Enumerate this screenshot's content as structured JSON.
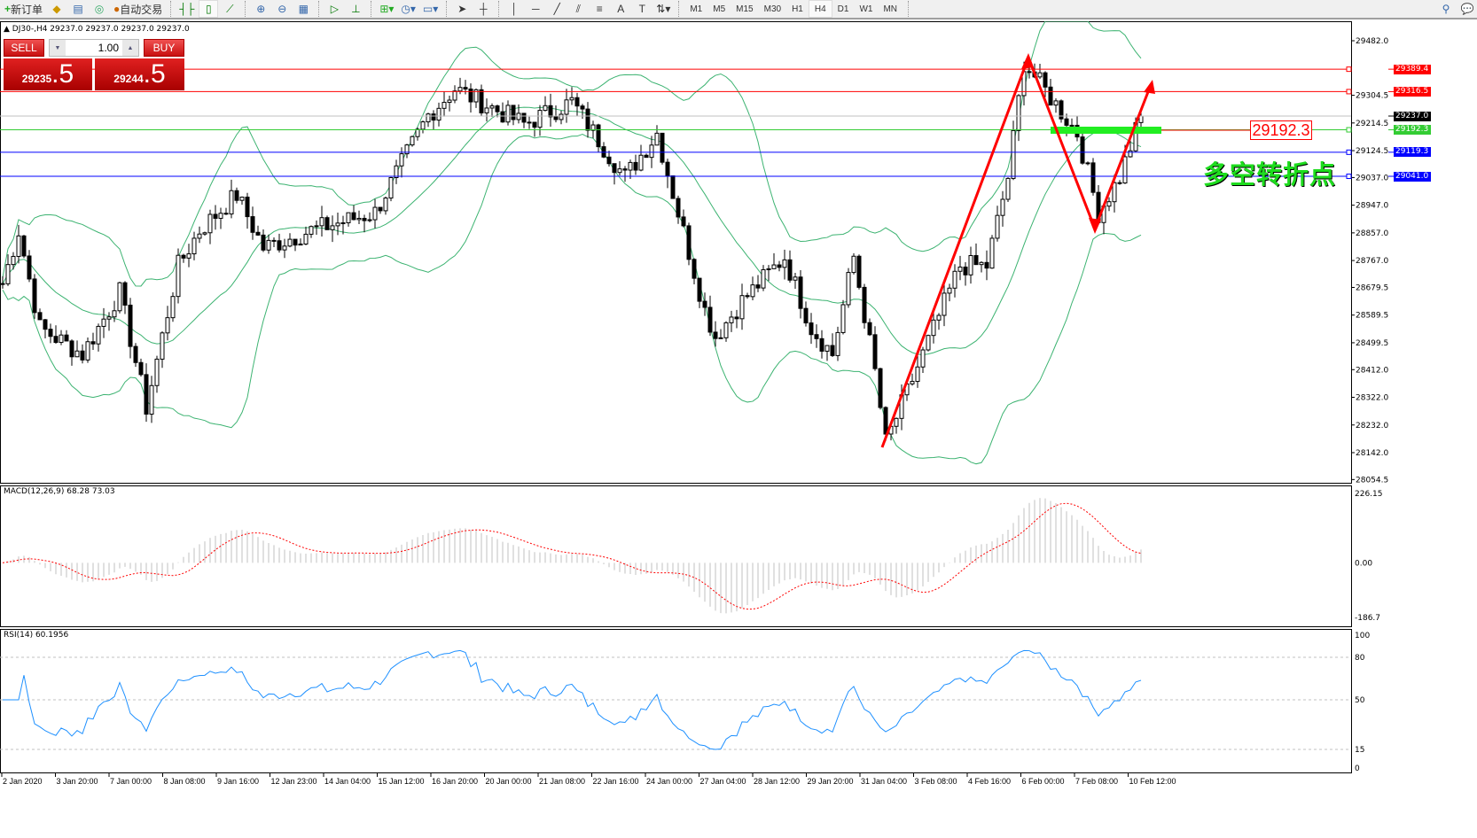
{
  "toolbar": {
    "new_order": "新订单",
    "auto_trading": "自动交易",
    "icons": [
      "new-order-icon",
      "gold-icon",
      "history-icon",
      "signal-icon",
      "auto-trading-icon",
      "bar-chart-icon",
      "candle-chart-icon",
      "line-chart-icon",
      "zoom-in-icon",
      "zoom-out-icon",
      "tile-icon",
      "autoscroll-icon",
      "chart-shift-icon",
      "add-indicator-icon",
      "period-icon",
      "template-icon",
      "cursor-icon",
      "crosshair-icon",
      "vertical-line-icon",
      "horizontal-line-icon",
      "trendline-icon",
      "channel-icon",
      "fibo-icon",
      "text-icon",
      "label-icon",
      "arrows-icon",
      "search-icon",
      "chat-icon"
    ],
    "timeframes": [
      "M1",
      "M5",
      "M15",
      "M30",
      "H1",
      "H4",
      "D1",
      "W1",
      "MN"
    ],
    "active_timeframe": "H4"
  },
  "chart": {
    "symbol_line": "DJ30-,H4  29237.0 29237.0 29237.0 29237.0",
    "trade_panel": {
      "sell": "SELL",
      "buy": "BUY",
      "lot": "1.00",
      "sell_main": "29235",
      "sell_frac": ".5",
      "buy_main": "29244",
      "buy_frac": ".5"
    },
    "price_axis": [
      "29482.0",
      "29304.5",
      "29214.5",
      "29124.5",
      "29037.0",
      "28947.0",
      "28857.0",
      "28767.0",
      "28679.5",
      "28589.5",
      "28499.5",
      "28412.0",
      "28322.0",
      "28232.0",
      "28142.0",
      "28054.5"
    ],
    "levels": [
      {
        "price": "29389.4",
        "color": "#ff0000"
      },
      {
        "price": "29316.5",
        "color": "#ff0000"
      },
      {
        "price": "29237.0",
        "color": "#000000"
      },
      {
        "price": "29192.3",
        "color": "#33cc33"
      },
      {
        "price": "29119.3",
        "color": "#0000ff"
      },
      {
        "price": "29041.0",
        "color": "#0000ff"
      }
    ],
    "annotation_price": "29192.3",
    "annotation_text": "多空转折点",
    "time_axis": [
      "2 Jan 2020",
      "3 Jan 20:00",
      "7 Jan 00:00",
      "8 Jan 08:00",
      "9 Jan 16:00",
      "12 Jan 23:00",
      "14 Jan 04:00",
      "15 Jan 12:00",
      "16 Jan 20:00",
      "20 Jan 00:00",
      "21 Jan 08:00",
      "22 Jan 16:00",
      "24 Jan 00:00",
      "27 Jan 04:00",
      "28 Jan 12:00",
      "29 Jan 20:00",
      "31 Jan 04:00",
      "3 Feb 08:00",
      "4 Feb 16:00",
      "6 Feb 00:00",
      "7 Feb 08:00",
      "10 Feb 12:00"
    ]
  },
  "macd": {
    "label": "MACD(12,26,9) 68.28 73.03",
    "axis": [
      "226.15",
      "0.00",
      "-186.7"
    ]
  },
  "rsi": {
    "label": "RSI(14) 60.1956",
    "axis": [
      "100",
      "80",
      "50",
      "15",
      "0"
    ]
  },
  "chart_data": {
    "type": "candlestick",
    "price_path": [
      [
        0,
        28692
      ],
      [
        3,
        28865
      ],
      [
        7,
        28548
      ],
      [
        15,
        28462
      ],
      [
        22,
        28664
      ],
      [
        27,
        28289
      ],
      [
        33,
        28750
      ],
      [
        37,
        28865
      ],
      [
        44,
        28981
      ],
      [
        49,
        28808
      ],
      [
        58,
        28865
      ],
      [
        70,
        28923
      ],
      [
        80,
        29240
      ],
      [
        85,
        29326
      ],
      [
        98,
        29211
      ],
      [
        107,
        29283
      ],
      [
        117,
        29038
      ],
      [
        123,
        29182
      ],
      [
        127,
        28923
      ],
      [
        132,
        28606
      ],
      [
        134,
        28520
      ],
      [
        139,
        28635
      ],
      [
        147,
        28779
      ],
      [
        152,
        28548
      ],
      [
        156,
        28462
      ],
      [
        160,
        28779
      ],
      [
        164,
        28404
      ],
      [
        166,
        28174
      ],
      [
        173,
        28462
      ],
      [
        180,
        28750
      ],
      [
        185,
        28750
      ],
      [
        189,
        29038
      ],
      [
        192,
        29413
      ],
      [
        197,
        29297
      ],
      [
        202,
        29182
      ],
      [
        206,
        28923
      ],
      [
        210,
        29038
      ],
      [
        214,
        29237
      ]
    ],
    "ylim": [
      28054.5,
      29540
    ],
    "macd_ylim": [
      -186.7,
      226.15
    ],
    "rsi_ylim": [
      0,
      100
    ]
  }
}
